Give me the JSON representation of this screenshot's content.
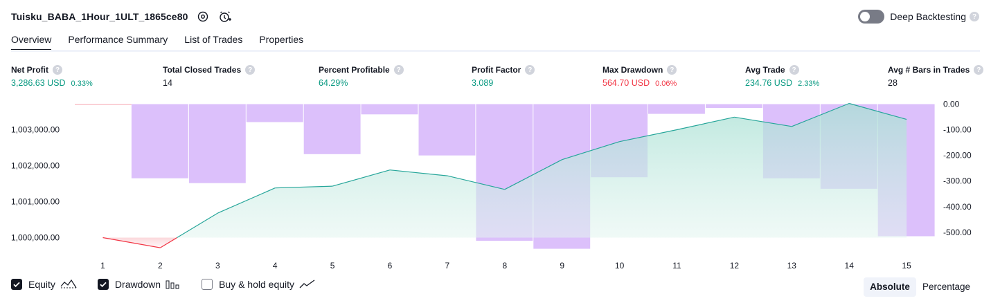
{
  "header": {
    "title": "Tuisku_BABA_1Hour_1ULT_1865ce80",
    "deep_backtesting_label": "Deep Backtesting",
    "help_glyph": "?"
  },
  "tabs": [
    {
      "label": "Overview",
      "active": true
    },
    {
      "label": "Performance Summary",
      "active": false
    },
    {
      "label": "List of Trades",
      "active": false
    },
    {
      "label": "Properties",
      "active": false
    }
  ],
  "metrics": [
    {
      "label": "Net Profit",
      "value": "3,286.63 USD",
      "sub": "0.33%",
      "color": "green"
    },
    {
      "label": "Total Closed Trades",
      "value": "14",
      "sub": "",
      "color": "dark"
    },
    {
      "label": "Percent Profitable",
      "value": "64.29%",
      "sub": "",
      "color": "green"
    },
    {
      "label": "Profit Factor",
      "value": "3.089",
      "sub": "",
      "color": "green"
    },
    {
      "label": "Max Drawdown",
      "value": "564.70 USD",
      "sub": "0.06%",
      "color": "red"
    },
    {
      "label": "Avg Trade",
      "value": "234.76 USD",
      "sub": "2.33%",
      "color": "green"
    },
    {
      "label": "Avg # Bars in Trades",
      "value": "28",
      "sub": "",
      "color": "dark"
    }
  ],
  "legend": {
    "equity_label": "Equity",
    "equity_checked": true,
    "drawdown_label": "Drawdown",
    "drawdown_checked": true,
    "buyhold_label": "Buy & hold equity",
    "buyhold_checked": false
  },
  "modes": {
    "absolute_label": "Absolute",
    "percentage_label": "Percentage",
    "active": "Absolute"
  },
  "colors": {
    "green": "#089981",
    "red": "#f23645",
    "drawdown": "#dcc0fb",
    "equity_line": "#26a69a",
    "equity_fill": "#bfe8df",
    "overlap": "#b3b8ea"
  },
  "icons": [
    "gear-icon",
    "alarm-clock-add-icon",
    "help-icon",
    "checkmark-icon",
    "equity-line-icon",
    "drawdown-bars-icon",
    "buyhold-line-icon"
  ],
  "chart_data": {
    "type": "area",
    "x": [
      1,
      2,
      3,
      4,
      5,
      6,
      7,
      8,
      9,
      10,
      11,
      12,
      13,
      14,
      15
    ],
    "series": [
      {
        "name": "Equity",
        "axis": "left",
        "values": [
          1000000,
          999720,
          1000680,
          1001380,
          1001430,
          1001880,
          1001720,
          1001340,
          1002170,
          1002670,
          1003000,
          1003350,
          1003090,
          1003730,
          1003287
        ]
      },
      {
        "name": "Drawdown",
        "axis": "right",
        "values": [
          0,
          -289,
          -308,
          -70,
          -195,
          -40,
          -200,
          -533,
          -564,
          -285,
          -38,
          -15,
          -289,
          -330,
          -515
        ]
      }
    ],
    "y_left_ticks": [
      "1,000,000.00",
      "1,001,000.00",
      "1,002,000.00",
      "1,003,000.00"
    ],
    "y_right_ticks": [
      "0.00",
      "-100.00",
      "-200.00",
      "-300.00",
      "-400.00",
      "-500.00"
    ]
  }
}
